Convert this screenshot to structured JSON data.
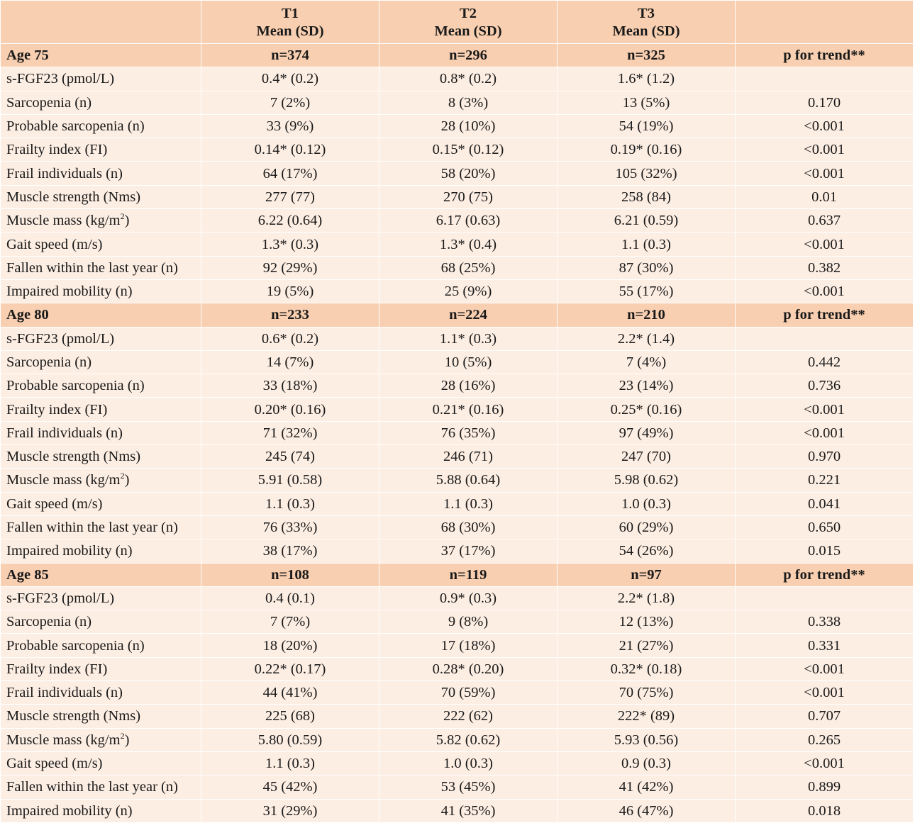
{
  "header": {
    "label": "",
    "columns": [
      "T1",
      "T2",
      "T3"
    ],
    "subheading": "Mean (SD)",
    "trend": ""
  },
  "groups": [
    {
      "title": "Age 75",
      "n": [
        "n=374",
        "n=296",
        "n=325"
      ],
      "trend_label": "p for trend**",
      "rows": [
        {
          "label": "s-FGF23 (pmol/L)",
          "t1": "0.4* (0.2)",
          "t2": "0.8* (0.2)",
          "t3": "1.6* (1.2)",
          "p": ""
        },
        {
          "label": "Sarcopenia (n)",
          "t1": "7 (2%)",
          "t2": "8 (3%)",
          "t3": "13 (5%)",
          "p": "0.170"
        },
        {
          "label": "Probable sarcopenia (n)",
          "t1": "33 (9%)",
          "t2": "28 (10%)",
          "t3": "54 (19%)",
          "p": "<0.001"
        },
        {
          "label": "Frailty index (FI)",
          "t1": "0.14* (0.12)",
          "t2": "0.15* (0.12)",
          "t3": "0.19* (0.16)",
          "p": "<0.001"
        },
        {
          "label": "Frail individuals (n)",
          "t1": "64 (17%)",
          "t2": "58 (20%)",
          "t3": "105 (32%)",
          "p": "<0.001"
        },
        {
          "label": "Muscle strength (Nms)",
          "t1": "277 (77)",
          "t2": "270 (75)",
          "t3": "258 (84)",
          "p": "0.01"
        },
        {
          "label": "Muscle mass (kg/m",
          "sup": "2",
          "label_end": ")",
          "t1": "6.22 (0.64)",
          "t2": "6.17 (0.63)",
          "t3": "6.21 (0.59)",
          "p": "0.637"
        },
        {
          "label": "Gait speed (m/s)",
          "t1": "1.3* (0.3)",
          "t2": "1.3* (0.4)",
          "t3": "1.1 (0.3)",
          "p": "<0.001"
        },
        {
          "label": "Fallen within the last year (n)",
          "t1": "92 (29%)",
          "t2": "68 (25%)",
          "t3": "87 (30%)",
          "p": "0.382"
        },
        {
          "label": "Impaired mobility (n)",
          "t1": "19 (5%)",
          "t2": "25 (9%)",
          "t3": "55 (17%)",
          "p": "<0.001"
        }
      ]
    },
    {
      "title": "Age 80",
      "n": [
        "n=233",
        "n=224",
        "n=210"
      ],
      "trend_label": "p for trend**",
      "rows": [
        {
          "label": "s-FGF23 (pmol/L)",
          "t1": "0.6* (0.2)",
          "t2": "1.1* (0.3)",
          "t3": "2.2* (1.4)",
          "p": ""
        },
        {
          "label": "Sarcopenia (n)",
          "t1": "14 (7%)",
          "t2": "10 (5%)",
          "t3": "7 (4%)",
          "p": "0.442"
        },
        {
          "label": "Probable sarcopenia (n)",
          "t1": "33 (18%)",
          "t2": "28 (16%)",
          "t3": "23 (14%)",
          "p": "0.736"
        },
        {
          "label": "Frailty index (FI)",
          "t1": "0.20* (0.16)",
          "t2": "0.21* (0.16)",
          "t3": "0.25* (0.16)",
          "p": "<0.001"
        },
        {
          "label": "Frail individuals (n)",
          "t1": "71 (32%)",
          "t2": "76 (35%)",
          "t3": "97 (49%)",
          "p": "<0.001"
        },
        {
          "label": "Muscle strength (Nms)",
          "t1": "245 (74)",
          "t2": "246 (71)",
          "t3": "247 (70)",
          "p": "0.970"
        },
        {
          "label": "Muscle mass (kg/m",
          "sup": "2",
          "label_end": ")",
          "t1": "5.91 (0.58)",
          "t2": "5.88 (0.64)",
          "t3": "5.98 (0.62)",
          "p": "0.221"
        },
        {
          "label": "Gait speed (m/s)",
          "t1": "1.1 (0.3)",
          "t2": "1.1 (0.3)",
          "t3": "1.0 (0.3)",
          "p": "0.041"
        },
        {
          "label": "Fallen within the last year (n)",
          "t1": "76 (33%)",
          "t2": "68 (30%)",
          "t3": "60 (29%)",
          "p": "0.650"
        },
        {
          "label": "Impaired mobility (n)",
          "t1": "38 (17%)",
          "t2": "37 (17%)",
          "t3": "54 (26%)",
          "p": "0.015"
        }
      ]
    },
    {
      "title": "Age 85",
      "n": [
        "n=108",
        "n=119",
        "n=97"
      ],
      "trend_label": "p for trend**",
      "rows": [
        {
          "label": "s-FGF23 (pmol/L)",
          "t1": "0.4 (0.1)",
          "t2": "0.9* (0.3)",
          "t3": "2.2* (1.8)",
          "p": ""
        },
        {
          "label": "Sarcopenia (n)",
          "t1": "7 (7%)",
          "t2": "9 (8%)",
          "t3": "12 (13%)",
          "p": "0.338"
        },
        {
          "label": "Probable sarcopenia (n)",
          "t1": "18 (20%)",
          "t2": "17 (18%)",
          "t3": "21 (27%)",
          "p": "0.331"
        },
        {
          "label": "Frailty index (FI)",
          "t1": "0.22* (0.17)",
          "t2": "0.28* (0.20)",
          "t3": "0.32* (0.18)",
          "p": "<0.001"
        },
        {
          "label": "Frail individuals (n)",
          "t1": "44 (41%)",
          "t2": "70 (59%)",
          "t3": "70 (75%)",
          "p": "<0.001"
        },
        {
          "label": "Muscle strength (Nms)",
          "t1": "225 (68)",
          "t2": "222 (62)",
          "t3": "222* (89)",
          "p": "0.707"
        },
        {
          "label": "Muscle mass (kg/m",
          "sup": "2",
          "label_end": ")",
          "t1": "5.80 (0.59)",
          "t2": "5.82 (0.62)",
          "t3": "5.93 (0.56)",
          "p": "0.265"
        },
        {
          "label": "Gait speed (m/s)",
          "t1": "1.1 (0.3)",
          "t2": "1.0 (0.3)",
          "t3": "0.9 (0.3)",
          "p": "<0.001"
        },
        {
          "label": "Fallen within the last year (n)",
          "t1": "45 (42%)",
          "t2": "53 (45%)",
          "t3": "41 (42%)",
          "p": "0.899"
        },
        {
          "label": "Impaired mobility (n)",
          "t1": "31 (29%)",
          "t2": "41 (35%)",
          "t3": "46 (47%)",
          "p": "0.018"
        }
      ]
    }
  ]
}
